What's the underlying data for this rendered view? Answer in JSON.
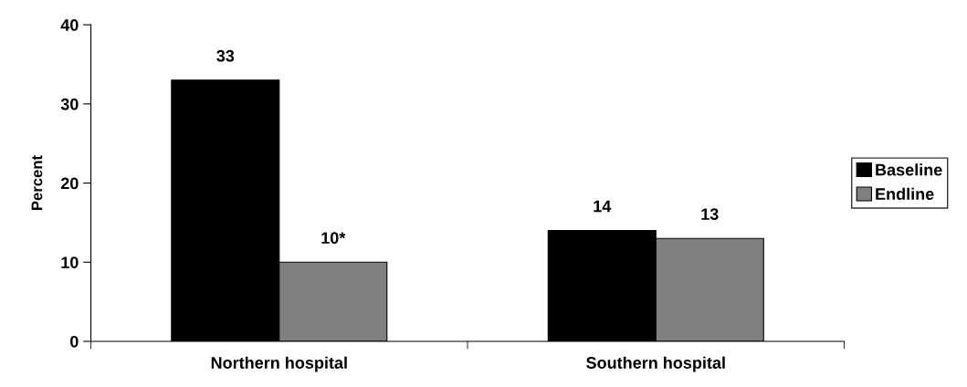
{
  "chart_data": {
    "type": "bar",
    "ylabel": "Percent",
    "categories": [
      "Northern hospital",
      "Southern hospital"
    ],
    "series": [
      {
        "name": "Baseline",
        "color": "#000000",
        "values": [
          33,
          14
        ],
        "value_labels": [
          "33",
          "14"
        ]
      },
      {
        "name": "Endline",
        "color": "#808080",
        "values": [
          10,
          13
        ],
        "value_labels": [
          "10*",
          "13"
        ]
      }
    ],
    "ylim": [
      0,
      40
    ],
    "yticks": [
      0,
      10,
      20,
      30,
      40
    ],
    "grid": false,
    "legend": "right"
  }
}
